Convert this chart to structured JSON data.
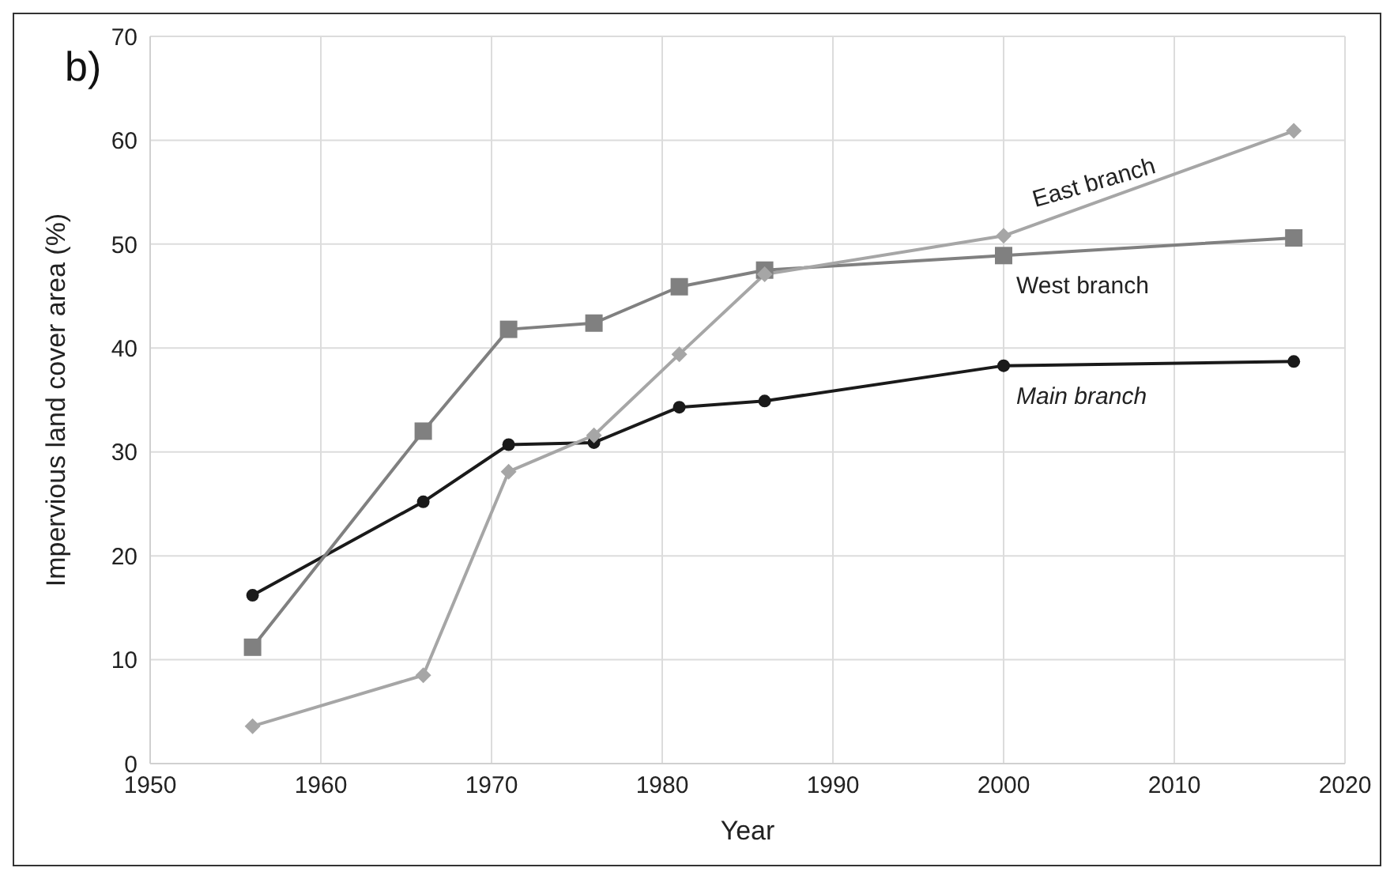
{
  "chart_data": {
    "type": "line",
    "annotations": [
      "b)"
    ],
    "xlabel": "Year",
    "ylabel": "Impervious land cover area  (%)",
    "x": [
      1956,
      1966,
      1971,
      1976,
      1981,
      1986,
      2000,
      2017
    ],
    "series": [
      {
        "name": "Main branch",
        "color": "#1a1a1a",
        "marker": "circle",
        "values": [
          16.2,
          25.2,
          30.7,
          30.9,
          34.3,
          34.9,
          38.3,
          38.7
        ]
      },
      {
        "name": "West branch",
        "color": "#808080",
        "marker": "square",
        "values": [
          11.2,
          32.0,
          41.8,
          42.4,
          45.9,
          47.5,
          48.9,
          50.6
        ]
      },
      {
        "name": "East branch",
        "color": "#a6a6a6",
        "marker": "diamond",
        "values": [
          3.6,
          8.5,
          28.1,
          31.6,
          39.4,
          47.1,
          50.8,
          60.9
        ]
      }
    ],
    "xlim": [
      1950,
      2020
    ],
    "xticks": [
      1950,
      1960,
      1970,
      1980,
      1990,
      2000,
      2010,
      2020
    ],
    "ylim": [
      0,
      70
    ],
    "yticks": [
      0,
      10,
      20,
      30,
      40,
      50,
      60,
      70
    ],
    "grid": true,
    "legend": false
  }
}
